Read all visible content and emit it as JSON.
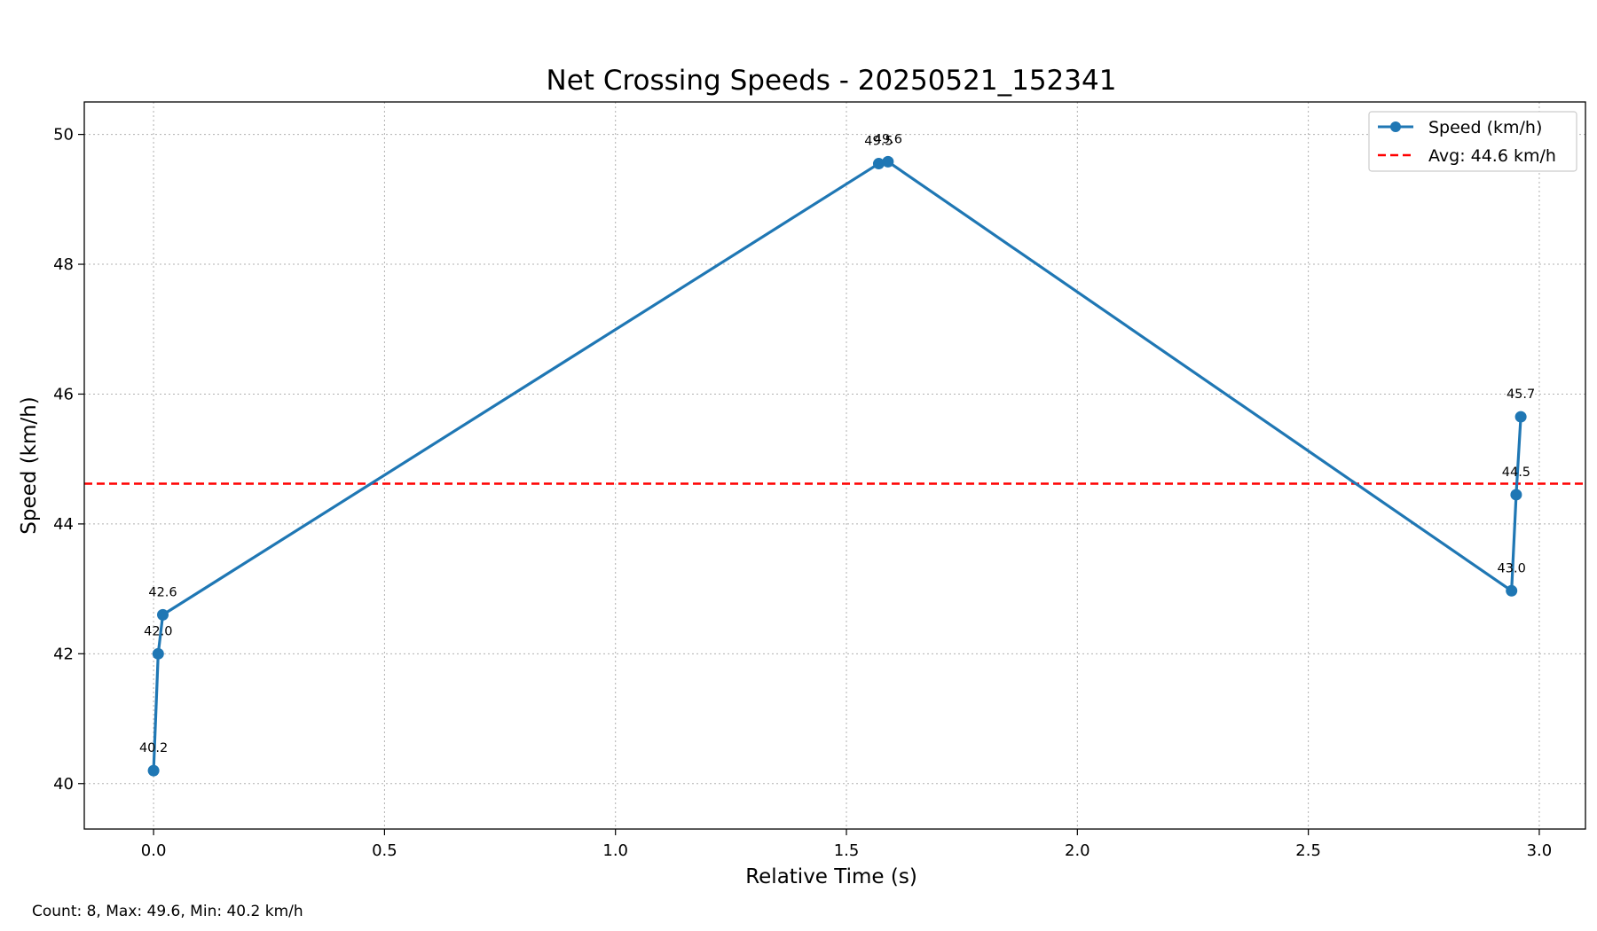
{
  "chart_data": {
    "type": "line",
    "title": "Net Crossing Speeds - 20250521_152341",
    "xlabel": "Relative Time (s)",
    "ylabel": "Speed (km/h)",
    "xlim": [
      -0.15,
      3.1
    ],
    "ylim": [
      39.3,
      50.5
    ],
    "xticks": [
      0.0,
      0.5,
      1.0,
      1.5,
      2.0,
      2.5,
      3.0
    ],
    "xtick_labels": [
      "0.0",
      "0.5",
      "1.0",
      "1.5",
      "2.0",
      "2.5",
      "3.0"
    ],
    "yticks": [
      40,
      42,
      44,
      46,
      48,
      50
    ],
    "ytick_labels": [
      "40",
      "42",
      "44",
      "46",
      "48",
      "50"
    ],
    "grid": true,
    "legend_position": "top-right",
    "series": [
      {
        "name": "Speed (km/h)",
        "color": "#1f77b4",
        "x": [
          0.0,
          0.01,
          0.02,
          1.57,
          1.59,
          2.94,
          2.95,
          2.96
        ],
        "y": [
          40.2,
          42.0,
          42.6,
          49.55,
          49.58,
          42.97,
          44.45,
          45.65
        ],
        "labels": [
          "40.2",
          "42.0",
          "42.6",
          "49.5",
          "49.6",
          "43.0",
          "44.5",
          "45.7"
        ]
      }
    ],
    "average": {
      "name": "Avg: 44.6 km/h",
      "value": 44.62,
      "color": "#ff0000"
    },
    "footer": "Count: 8, Max: 49.6, Min: 40.2 km/h"
  }
}
